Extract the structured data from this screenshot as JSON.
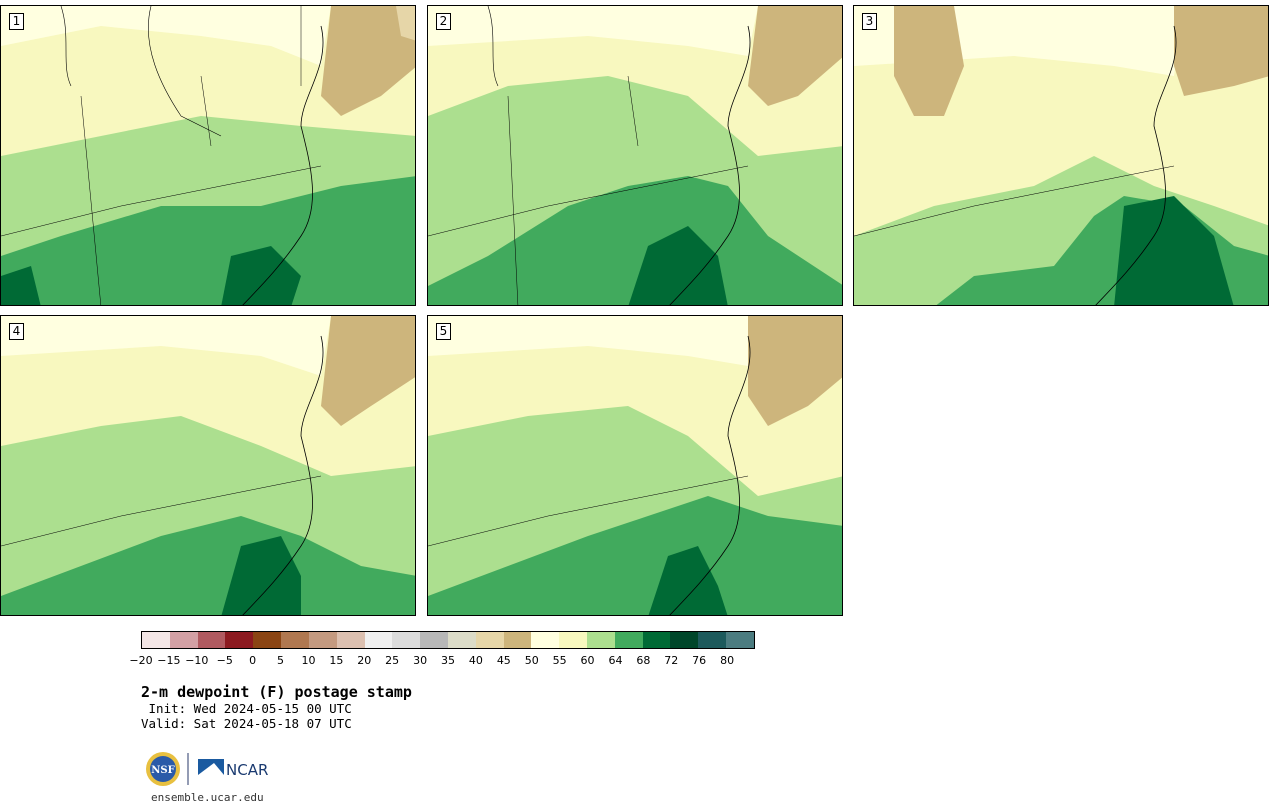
{
  "panels": [
    {
      "label": "1"
    },
    {
      "label": "2"
    },
    {
      "label": "3"
    },
    {
      "label": "4"
    },
    {
      "label": "5"
    }
  ],
  "colorbar": {
    "colors": [
      "#f3e6e6",
      "#d3a0a4",
      "#b05a60",
      "#8c1a20",
      "#8b4513",
      "#b07850",
      "#c49a80",
      "#dcc0b0",
      "#f0f0f0",
      "#dcdcdc",
      "#b8b8b8",
      "#dcdcc8",
      "#e6d6a8",
      "#cdb57c",
      "#ffffe0",
      "#f8f8bf",
      "#acdf8f",
      "#41aa5d",
      "#006a35",
      "#00462a",
      "#1d5a5c",
      "#4c7c80"
    ],
    "tick_labels": [
      "−20",
      "−15",
      "−10",
      "−5",
      "0",
      "5",
      "10",
      "15",
      "20",
      "25",
      "30",
      "35",
      "40",
      "45",
      "50",
      "55",
      "60",
      "64",
      "68",
      "72",
      "76",
      "80"
    ]
  },
  "title": "2-m dewpoint (F) postage stamp",
  "init_text": " Init: Wed 2024-05-15 00 UTC",
  "valid_text": "Valid: Sat 2024-05-18 07 UTC",
  "logos": {
    "nsf": "NSF",
    "ncar": "NCAR"
  },
  "site_url": "ensemble.ucar.edu"
}
